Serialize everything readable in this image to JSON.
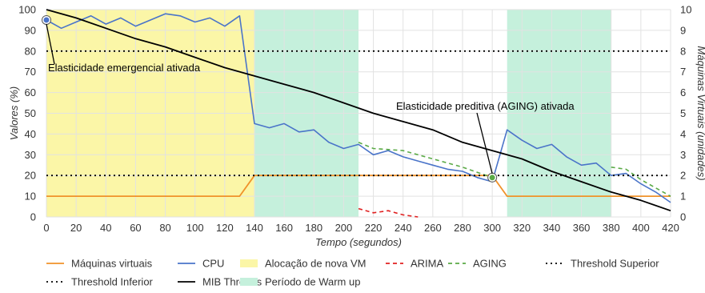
{
  "chart_data": {
    "type": "line",
    "xlabel": "Tempo (segundos)",
    "ylabel": "Valores (%)",
    "y2label": "Máquinas Virtuais (unidades)",
    "xlim": [
      0,
      420
    ],
    "ylim": [
      0,
      100
    ],
    "y2lim": [
      0,
      10
    ],
    "x_ticks": [
      "0",
      "20",
      "40",
      "60",
      "80",
      "100",
      "120",
      "140",
      "160",
      "180",
      "200",
      "220",
      "240",
      "260",
      "280",
      "300",
      "320",
      "340",
      "360",
      "380",
      "400",
      "420"
    ],
    "y_ticks": [
      "0",
      "10",
      "20",
      "30",
      "40",
      "50",
      "60",
      "70",
      "80",
      "90",
      "100"
    ],
    "y2_ticks": [
      "0",
      "1",
      "2",
      "3",
      "4",
      "5",
      "6",
      "7",
      "8",
      "9",
      "10"
    ],
    "grid": true,
    "legend_position": "bottom",
    "colors": {
      "vms": "#f0922a",
      "cpu": "#4a74c9",
      "arima": "#e02020",
      "aging": "#5aaa46",
      "threshold_sup": "#000000",
      "threshold_inf": "#000000",
      "mib": "#000000",
      "vm_alloc": "#fbf6a7",
      "warmup": "#c5f0dc"
    },
    "regions": [
      {
        "name": "Alocação de nova VM",
        "x": [
          0,
          140
        ]
      },
      {
        "name": "Período de Warm up",
        "x": [
          140,
          210
        ]
      },
      {
        "name": "Período de Warm up",
        "x": [
          310,
          380
        ]
      }
    ],
    "series": [
      {
        "name": "Máquinas virtuais",
        "axis": "right",
        "style": "solid",
        "x": [
          0,
          130,
          140,
          300,
          310,
          420
        ],
        "y": [
          1,
          1,
          2,
          2,
          1,
          1
        ]
      },
      {
        "name": "CPU",
        "axis": "left",
        "style": "solid",
        "x": [
          0,
          10,
          20,
          30,
          40,
          50,
          60,
          70,
          80,
          90,
          100,
          110,
          120,
          130,
          140,
          150,
          160,
          170,
          180,
          190,
          200,
          210,
          220,
          230,
          240,
          250,
          260,
          270,
          280,
          290,
          300,
          310,
          320,
          330,
          340,
          350,
          360,
          370,
          380,
          390,
          400,
          410,
          420
        ],
        "y": [
          95,
          91,
          94,
          97,
          93,
          96,
          92,
          95,
          98,
          97,
          94,
          96,
          92,
          97,
          45,
          43,
          45,
          41,
          42,
          36,
          33,
          35,
          30,
          32,
          29,
          27,
          25,
          23,
          22,
          19,
          17,
          42,
          37,
          33,
          35,
          29,
          25,
          26,
          20,
          21,
          16,
          12,
          7
        ]
      },
      {
        "name": "ARIMA",
        "axis": "left",
        "style": "dashed",
        "x": [
          210,
          220,
          230,
          240,
          250
        ],
        "y": [
          4,
          2,
          3,
          1,
          0
        ]
      },
      {
        "name": "AGING",
        "axis": "left",
        "style": "dashed",
        "x": [
          210,
          220,
          240,
          260,
          280,
          300
        ],
        "y": [
          36,
          33,
          32,
          28,
          24,
          19
        ]
      },
      {
        "name": "AGING",
        "axis": "left",
        "style": "dashed",
        "x": [
          380,
          390,
          400,
          420
        ],
        "y": [
          24,
          23,
          18,
          10
        ]
      },
      {
        "name": "Threshold Superior",
        "axis": "left",
        "style": "dotted",
        "x": [
          0,
          420
        ],
        "y": [
          80,
          80
        ]
      },
      {
        "name": "Threshold Inferior",
        "axis": "left",
        "style": "dotted",
        "x": [
          0,
          420
        ],
        "y": [
          20,
          20
        ]
      },
      {
        "name": "MIB Threads",
        "axis": "left",
        "style": "solid",
        "x": [
          0,
          20,
          40,
          60,
          80,
          100,
          120,
          140,
          160,
          180,
          200,
          220,
          240,
          260,
          280,
          300,
          320,
          340,
          360,
          380,
          400,
          420
        ],
        "y": [
          100,
          96,
          91,
          86,
          82,
          77,
          72,
          68,
          64,
          60,
          55,
          50,
          46,
          42,
          36,
          32,
          28,
          22,
          17,
          12,
          8,
          3
        ]
      }
    ],
    "annotations": [
      {
        "text": "Elasticidade emergencial ativada",
        "point": [
          0,
          95
        ]
      },
      {
        "text": "Elasticidade preditiva (AGING) ativada",
        "point": [
          300,
          19
        ]
      }
    ],
    "legend": [
      [
        "Máquinas virtuais",
        "CPU",
        "Alocação de nova VM",
        "ARIMA",
        "AGING",
        "Threshold Superior"
      ],
      [
        "Threshold Inferior",
        "MIB Threads",
        "Período de Warm up"
      ]
    ]
  }
}
